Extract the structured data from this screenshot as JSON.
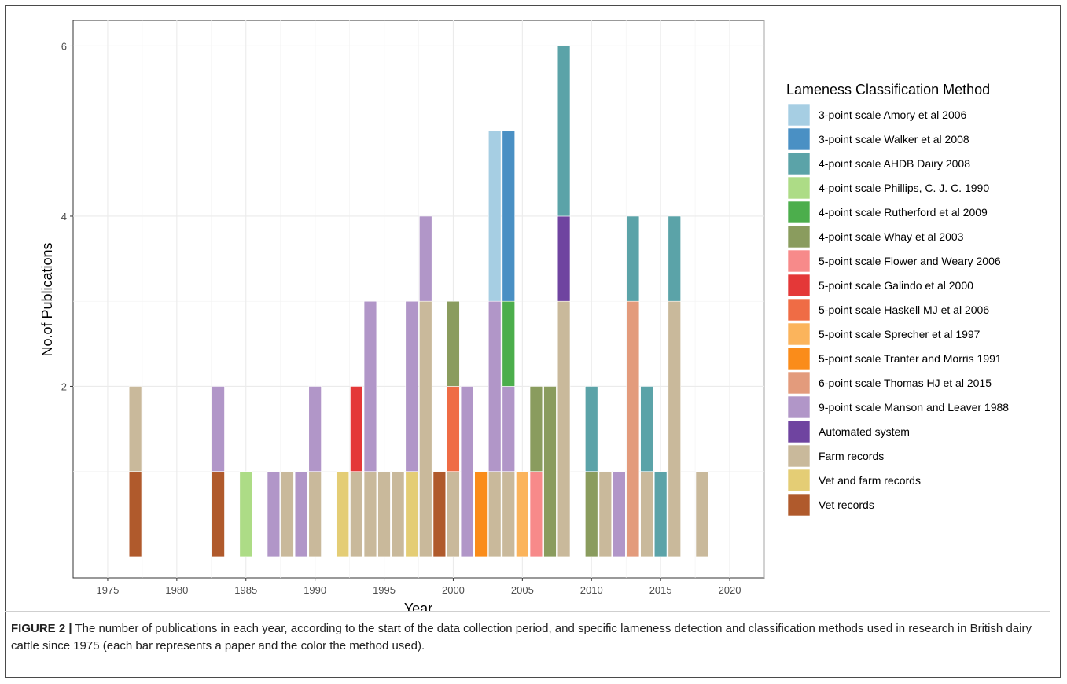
{
  "caption": {
    "label": "FIGURE 2 |",
    "text": " The number of publications in each year, according to the start of the data collection period, and specific lameness detection and classification methods used in research in British dairy cattle since 1975 (each bar represents a paper and the color the method used)."
  },
  "chart_data": {
    "type": "bar",
    "stacked": true,
    "xlabel": "Year",
    "ylabel": "No.of Publications",
    "xlim": [
      1972.5,
      2022.5
    ],
    "ylim": [
      -0.25,
      6.3
    ],
    "x_ticks": [
      1975,
      1980,
      1985,
      1990,
      1995,
      2000,
      2005,
      2010,
      2015,
      2020
    ],
    "y_ticks": [
      2,
      4,
      6
    ],
    "grid": true,
    "legend": {
      "title": "Lameness Classification Method",
      "position": "right",
      "items": [
        {
          "label": "3-point scale Amory et al 2006",
          "color": "#a6cee3"
        },
        {
          "label": "3-point scale Walker et al 2008",
          "color": "#4a90c4"
        },
        {
          "label": "4-point scale AHDB Dairy 2008",
          "color": "#5ba3a8"
        },
        {
          "label": "4-point scale Phillips, C. J. C. 1990",
          "color": "#addc86"
        },
        {
          "label": "4-point scale Rutherford et al 2009",
          "color": "#4cae4c"
        },
        {
          "label": "4-point scale Whay et al 2003",
          "color": "#8a9c5e"
        },
        {
          "label": "5-point scale Flower and Weary 2006",
          "color": "#f78a8a"
        },
        {
          "label": "5-point scale Galindo et al 2000",
          "color": "#e43838"
        },
        {
          "label": "5-point scale Haskell MJ et al 2006",
          "color": "#ef6c45"
        },
        {
          "label": "5-point scale Sprecher et al 1997",
          "color": "#fbb45c"
        },
        {
          "label": "5-point scale Tranter and Morris 1991",
          "color": "#fa8c1a"
        },
        {
          "label": "6-point scale Thomas HJ et al 2015",
          "color": "#e39b7c"
        },
        {
          "label": "9-point scale Manson and Leaver 1988",
          "color": "#b196c8"
        },
        {
          "label": "Automated system",
          "color": "#6f44a0"
        },
        {
          "label": "Farm records",
          "color": "#c9b99b"
        },
        {
          "label": "Vet and farm records",
          "color": "#e4cd75"
        },
        {
          "label": "Vet records",
          "color": "#b05a2c"
        }
      ]
    },
    "bars": [
      {
        "year": 1977,
        "segments": [
          {
            "method": "Vet records",
            "count": 1
          },
          {
            "method": "Farm records",
            "count": 1
          }
        ]
      },
      {
        "year": 1983,
        "segments": [
          {
            "method": "Vet records",
            "count": 1
          },
          {
            "method": "9-point scale Manson and Leaver 1988",
            "count": 1
          }
        ]
      },
      {
        "year": 1985,
        "segments": [
          {
            "method": "4-point scale Phillips, C. J. C. 1990",
            "count": 1
          }
        ]
      },
      {
        "year": 1987,
        "segments": [
          {
            "method": "9-point scale Manson and Leaver 1988",
            "count": 1
          }
        ]
      },
      {
        "year": 1988,
        "segments": [
          {
            "method": "Farm records",
            "count": 1
          }
        ]
      },
      {
        "year": 1989,
        "segments": [
          {
            "method": "9-point scale Manson and Leaver 1988",
            "count": 1
          }
        ]
      },
      {
        "year": 1990,
        "segments": [
          {
            "method": "Farm records",
            "count": 1
          },
          {
            "method": "9-point scale Manson and Leaver 1988",
            "count": 1
          }
        ]
      },
      {
        "year": 1992,
        "segments": [
          {
            "method": "Vet and farm records",
            "count": 1
          }
        ]
      },
      {
        "year": 1993,
        "segments": [
          {
            "method": "Farm records",
            "count": 1
          },
          {
            "method": "5-point scale Galindo et al 2000",
            "count": 1
          }
        ]
      },
      {
        "year": 1994,
        "segments": [
          {
            "method": "Farm records",
            "count": 1
          },
          {
            "method": "9-point scale Manson and Leaver 1988",
            "count": 2
          }
        ]
      },
      {
        "year": 1995,
        "segments": [
          {
            "method": "Farm records",
            "count": 1
          }
        ]
      },
      {
        "year": 1996,
        "segments": [
          {
            "method": "Farm records",
            "count": 1
          }
        ]
      },
      {
        "year": 1997,
        "segments": [
          {
            "method": "Vet and farm records",
            "count": 1
          },
          {
            "method": "9-point scale Manson and Leaver 1988",
            "count": 2
          }
        ]
      },
      {
        "year": 1998,
        "segments": [
          {
            "method": "Farm records",
            "count": 3
          },
          {
            "method": "9-point scale Manson and Leaver 1988",
            "count": 1
          }
        ]
      },
      {
        "year": 1999,
        "segments": [
          {
            "method": "Vet records",
            "count": 1
          }
        ]
      },
      {
        "year": 2000,
        "segments": [
          {
            "method": "Farm records",
            "count": 1
          },
          {
            "method": "5-point scale Haskell MJ et al 2006",
            "count": 1
          },
          {
            "method": "4-point scale Whay et al 2003",
            "count": 1
          }
        ]
      },
      {
        "year": 2001,
        "segments": [
          {
            "method": "9-point scale Manson and Leaver 1988",
            "count": 2
          }
        ]
      },
      {
        "year": 2002,
        "segments": [
          {
            "method": "5-point scale Tranter and Morris 1991",
            "count": 1
          }
        ]
      },
      {
        "year": 2003,
        "segments": [
          {
            "method": "Farm records",
            "count": 1
          },
          {
            "method": "9-point scale Manson and Leaver 1988",
            "count": 2
          },
          {
            "method": "3-point scale Amory et al 2006",
            "count": 2
          }
        ]
      },
      {
        "year": 2004,
        "segments": [
          {
            "method": "Farm records",
            "count": 1
          },
          {
            "method": "9-point scale Manson and Leaver 1988",
            "count": 1
          },
          {
            "method": "4-point scale Rutherford et al 2009",
            "count": 1
          },
          {
            "method": "3-point scale Walker et al 2008",
            "count": 2
          }
        ]
      },
      {
        "year": 2005,
        "segments": [
          {
            "method": "5-point scale Sprecher et al 1997",
            "count": 1
          }
        ]
      },
      {
        "year": 2006,
        "segments": [
          {
            "method": "5-point scale Flower and Weary 2006",
            "count": 1
          },
          {
            "method": "4-point scale Whay et al 2003",
            "count": 1
          }
        ]
      },
      {
        "year": 2007,
        "segments": [
          {
            "method": "4-point scale Whay et al 2003",
            "count": 2
          }
        ]
      },
      {
        "year": 2008,
        "segments": [
          {
            "method": "Farm records",
            "count": 3
          },
          {
            "method": "Automated system",
            "count": 1
          },
          {
            "method": "4-point scale AHDB Dairy 2008",
            "count": 2
          }
        ]
      },
      {
        "year": 2010,
        "segments": [
          {
            "method": "4-point scale Whay et al 2003",
            "count": 1
          },
          {
            "method": "4-point scale AHDB Dairy 2008",
            "count": 1
          }
        ]
      },
      {
        "year": 2011,
        "segments": [
          {
            "method": "Farm records",
            "count": 1
          }
        ]
      },
      {
        "year": 2012,
        "segments": [
          {
            "method": "9-point scale Manson and Leaver 1988",
            "count": 1
          }
        ]
      },
      {
        "year": 2013,
        "segments": [
          {
            "method": "6-point scale Thomas HJ et al 2015",
            "count": 3
          },
          {
            "method": "4-point scale AHDB Dairy 2008",
            "count": 1
          }
        ]
      },
      {
        "year": 2014,
        "segments": [
          {
            "method": "Farm records",
            "count": 1
          },
          {
            "method": "4-point scale AHDB Dairy 2008",
            "count": 1
          }
        ]
      },
      {
        "year": 2015,
        "segments": [
          {
            "method": "4-point scale AHDB Dairy 2008",
            "count": 1
          }
        ]
      },
      {
        "year": 2016,
        "segments": [
          {
            "method": "Farm records",
            "count": 3
          },
          {
            "method": "4-point scale AHDB Dairy 2008",
            "count": 1
          }
        ]
      },
      {
        "year": 2018,
        "segments": [
          {
            "method": "Farm records",
            "count": 1
          }
        ]
      }
    ]
  }
}
